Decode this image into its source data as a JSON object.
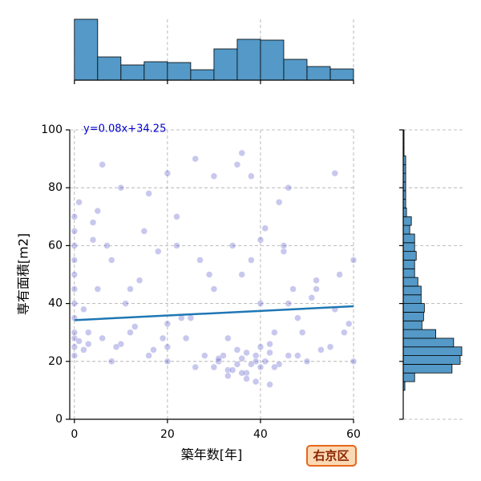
{
  "chart_data": {
    "type": "jointplot",
    "x_label": "築年数[年]",
    "y_label": "専有面積[m2]",
    "badge": "右京区",
    "regression_label": "y=0.08x+34.25",
    "regression": {
      "slope": 0.08,
      "intercept": 34.25
    },
    "color": "#2222bb",
    "line_color": "#1f77b4",
    "hist_color": "#5499c7",
    "grid": true,
    "xlim": [
      -1,
      60
    ],
    "ylim": [
      0,
      100
    ],
    "xticks": [
      0,
      20,
      40,
      60
    ],
    "yticks": [
      0,
      20,
      40,
      60,
      80,
      100
    ],
    "x": [
      0,
      0,
      0,
      0,
      0,
      0,
      0,
      0,
      0,
      0,
      0,
      0,
      1,
      2,
      3,
      5,
      4,
      6,
      8,
      10,
      12,
      14,
      16,
      18,
      20,
      20,
      20,
      22,
      24,
      25,
      28,
      30,
      30,
      31,
      32,
      33,
      34,
      35,
      35,
      36,
      36,
      37,
      38,
      38,
      39,
      40,
      40,
      40,
      41,
      42,
      43,
      44,
      45,
      46,
      48,
      50,
      52,
      55,
      58,
      60,
      2,
      5,
      8,
      11,
      15,
      19,
      23,
      27,
      31,
      34,
      37,
      40,
      43,
      46,
      49,
      53,
      57,
      60,
      3,
      7,
      12,
      17,
      22,
      26,
      29,
      33,
      36,
      39,
      42,
      45,
      48,
      52,
      56,
      59,
      10,
      20,
      30,
      35,
      38,
      41,
      44,
      6,
      16,
      26,
      36,
      46,
      56,
      1,
      4,
      9,
      13,
      33,
      37,
      39,
      42,
      47,
      51
    ],
    "y": [
      22,
      25,
      28,
      30,
      35,
      40,
      45,
      50,
      55,
      60,
      65,
      70,
      27,
      24,
      30,
      45,
      62,
      28,
      55,
      26,
      30,
      48,
      22,
      58,
      20,
      25,
      33,
      60,
      28,
      35,
      22,
      18,
      45,
      20,
      22,
      17,
      60,
      19,
      24,
      50,
      21,
      16,
      19,
      55,
      22,
      18,
      25,
      40,
      20,
      23,
      30,
      19,
      58,
      22,
      35,
      20,
      45,
      25,
      30,
      55,
      38,
      72,
      20,
      40,
      65,
      28,
      35,
      55,
      21,
      17,
      23,
      62,
      18,
      40,
      30,
      24,
      50,
      20,
      26,
      60,
      45,
      24,
      70,
      18,
      50,
      28,
      16,
      20,
      26,
      60,
      22,
      48,
      38,
      33,
      80,
      85,
      84,
      88,
      84,
      66,
      75,
      88,
      78,
      90,
      92,
      80,
      85,
      75,
      68,
      25,
      32,
      15,
      14,
      13,
      12,
      45,
      42
    ],
    "top_hist": {
      "bins": [
        0,
        5,
        10,
        15,
        20,
        25,
        30,
        35,
        40,
        45,
        50,
        55,
        60
      ],
      "counts": [
        152,
        58,
        38,
        46,
        44,
        26,
        78,
        102,
        100,
        52,
        34,
        28
      ]
    },
    "right_hist": {
      "bins": [
        10,
        13,
        16,
        19,
        22,
        25,
        28,
        31,
        34,
        37,
        40,
        43,
        46,
        49,
        52,
        55,
        58,
        61,
        64,
        67,
        70,
        73,
        76,
        79,
        82,
        85,
        88,
        91,
        94,
        97,
        100
      ],
      "counts": [
        6,
        42,
        180,
        210,
        216,
        186,
        120,
        69,
        75,
        78,
        66,
        66,
        54,
        42,
        42,
        48,
        42,
        42,
        24,
        30,
        12,
        9,
        9,
        9,
        9,
        9,
        9,
        3,
        3,
        3
      ]
    }
  }
}
